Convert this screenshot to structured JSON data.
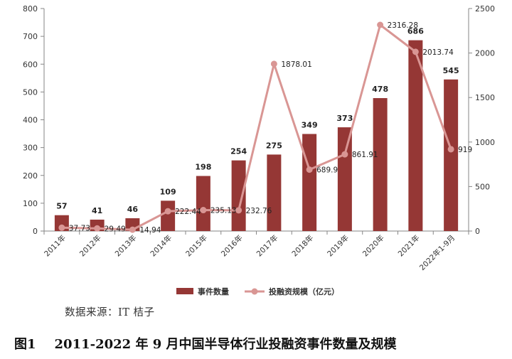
{
  "chart_data": {
    "type": "bar",
    "categories": [
      "2011年",
      "2012年",
      "2013年",
      "2014年",
      "2015年",
      "2016年",
      "2017年",
      "2018年",
      "2019年",
      "2020年",
      "2021年",
      "2022年1-9月"
    ],
    "series": [
      {
        "name": "事件数量",
        "type": "bar",
        "axis": "left",
        "color": "#953735",
        "values": [
          57,
          41,
          46,
          109,
          198,
          254,
          275,
          349,
          373,
          478,
          686,
          545
        ],
        "labels": [
          "57",
          "41",
          "46",
          "109",
          "198",
          "254",
          "275",
          "349",
          "373",
          "478",
          "686",
          "545"
        ]
      },
      {
        "name": "投融资规模（亿元）",
        "type": "line",
        "axis": "right",
        "color": "#D99694",
        "values": [
          37.73,
          29.49,
          14.94,
          222.44,
          235.13,
          232.76,
          1878.01,
          689.9,
          861.91,
          2316.28,
          2013.74,
          919
        ],
        "labels": [
          "37.73",
          "29.49",
          "14.94",
          "222.44",
          "235.13",
          "232.76",
          "1878.01",
          "689.9",
          "861.91",
          "2316.28",
          "2013.74",
          "919"
        ]
      }
    ],
    "y_left": {
      "min": 0,
      "max": 800,
      "ticks": [
        "0",
        "100",
        "200",
        "300",
        "400",
        "500",
        "600",
        "700",
        "800"
      ]
    },
    "y_right": {
      "min": 0,
      "max": 2500,
      "ticks": [
        "0",
        "500",
        "1000",
        "1500",
        "2000",
        "2500"
      ]
    },
    "grid": false,
    "legend_position": "bottom"
  },
  "source_text": "数据来源：IT 桔子",
  "caption": {
    "number": "图1",
    "title": "2011-2022 年 9 月中国半导体行业投融资事件数量及规模"
  }
}
